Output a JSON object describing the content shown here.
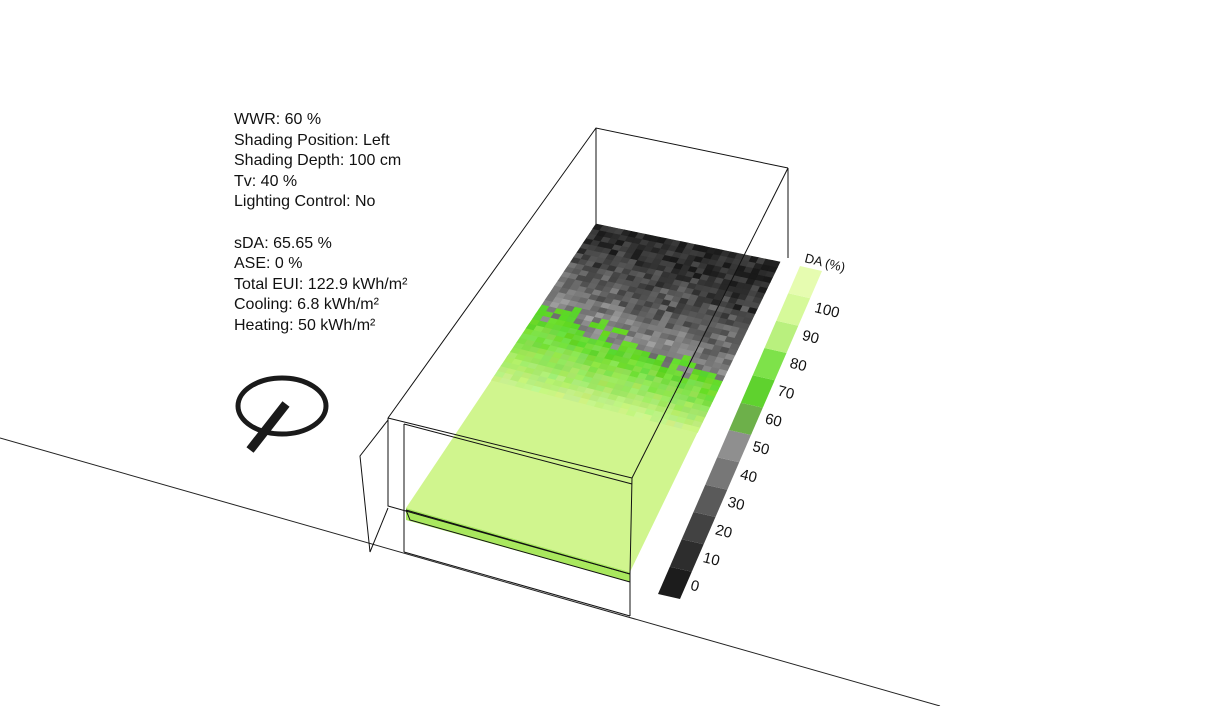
{
  "parameters": [
    {
      "label": "WWR",
      "value": "60 %"
    },
    {
      "label": "Shading Position",
      "value": "Left"
    },
    {
      "label": "Shading Depth",
      "value": "100 cm"
    },
    {
      "label": "Tv",
      "value": "40 %"
    },
    {
      "label": "Lighting Control",
      "value": "No"
    }
  ],
  "results": [
    {
      "label": "sDA",
      "value": "65.65 %"
    },
    {
      "label": "ASE",
      "value": "0 %"
    },
    {
      "label": "Total EUI",
      "value": "122.9 kWh/m²"
    },
    {
      "label": "Cooling",
      "value": "6.8 kWh/m²"
    },
    {
      "label": "Heating",
      "value": "50 kWh/m²"
    }
  ],
  "legend": {
    "title": "DA (%)",
    "ticks": [
      "0",
      "10",
      "20",
      "30",
      "40",
      "50",
      "60",
      "70",
      "80",
      "90",
      "100"
    ],
    "colors": [
      "#1c1c1c",
      "#2d2d2d",
      "#424242",
      "#5a5a5a",
      "#777777",
      "#8f8f8f",
      "#6db04a",
      "#5fd22e",
      "#7ee24a",
      "#b9f07e",
      "#d6f99a",
      "#e6fcb0"
    ]
  },
  "compass_icon": "north-arrow-icon"
}
